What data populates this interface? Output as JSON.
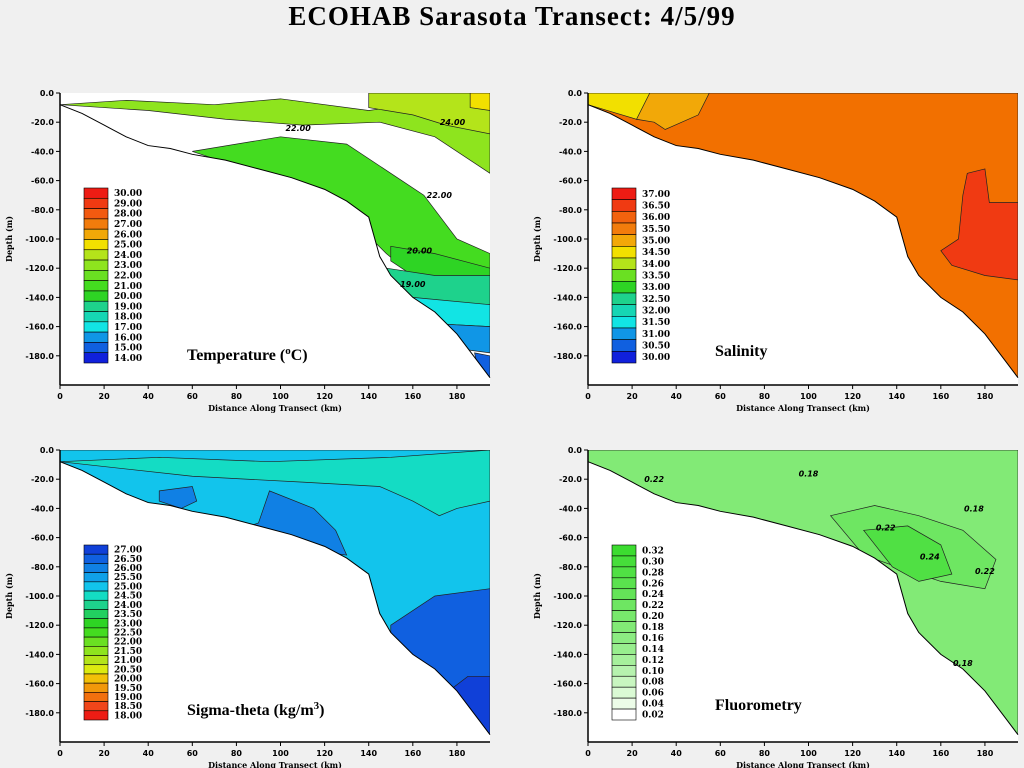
{
  "title": "ECOHAB Sarasota Transect: 4/5/99",
  "chart_data": [
    {
      "type": "contour",
      "title": "Temperature (oC)",
      "title_main": "Temperature (",
      "title_sup": "o",
      "title_tail": "C)",
      "xlabel": "Distance Along Transect (km)",
      "ylabel": "Depth (m)",
      "xlim": [
        0,
        195
      ],
      "ylim": [
        -200,
        0
      ],
      "xticks": [
        0,
        20,
        40,
        60,
        80,
        100,
        120,
        140,
        160,
        180
      ],
      "yticks": [
        "0.0",
        "-20.0",
        "-40.0",
        "-60.0",
        "-80.0",
        "-100.0",
        "-120.0",
        "-140.0",
        "-160.0",
        "-180.0"
      ],
      "legend": [
        "30.00",
        "29.00",
        "28.00",
        "27.00",
        "26.00",
        "25.00",
        "24.00",
        "23.00",
        "22.00",
        "21.00",
        "20.00",
        "19.00",
        "18.00",
        "17.00",
        "16.00",
        "15.00",
        "14.00"
      ],
      "legend_colors": [
        "#ee1c14",
        "#f03a12",
        "#f25a10",
        "#f27c0c",
        "#f2a808",
        "#f2e000",
        "#b4e41a",
        "#8ee41e",
        "#6ae022",
        "#44dc20",
        "#2ed424",
        "#1ed28c",
        "#16d6b4",
        "#12e4e4",
        "#1096e6",
        "#1060e0",
        "#1020dc"
      ],
      "regions": [
        {
          "color": "#8ee41e",
          "level": 23,
          "poly": [
            [
              0,
              -8
            ],
            [
              30,
              -5
            ],
            [
              70,
              -8
            ],
            [
              100,
              -4
            ],
            [
              140,
              -12
            ],
            [
              195,
              0
            ],
            [
              195,
              -55
            ],
            [
              170,
              -30
            ],
            [
              145,
              -20
            ],
            [
              110,
              -22
            ],
            [
              75,
              -18
            ],
            [
              40,
              -12
            ],
            [
              0,
              -8
            ]
          ]
        },
        {
          "color": "#b4e41a",
          "level": 24,
          "poly": [
            [
              140,
              0
            ],
            [
              195,
              0
            ],
            [
              195,
              -28
            ],
            [
              175,
              -22
            ],
            [
              160,
              -15
            ],
            [
              140,
              -10
            ]
          ]
        },
        {
          "color": "#f2e000",
          "level": 25,
          "poly": [
            [
              186,
              0
            ],
            [
              195,
              0
            ],
            [
              195,
              -12
            ],
            [
              186,
              -10
            ]
          ]
        },
        {
          "color": "#44dc20",
          "level": 21,
          "poly": [
            [
              60,
              -40
            ],
            [
              100,
              -30
            ],
            [
              130,
              -35
            ],
            [
              150,
              -55
            ],
            [
              165,
              -70
            ],
            [
              180,
              -100
            ],
            [
              195,
              -110
            ],
            [
              195,
              -140
            ],
            [
              160,
              -125
            ],
            [
              148,
              -110
            ],
            [
              138,
              -95
            ],
            [
              120,
              -70
            ],
            [
              90,
              -55
            ],
            [
              60,
              -40
            ]
          ]
        },
        {
          "color": "#2ed424",
          "level": 20,
          "poly": [
            [
              150,
              -105
            ],
            [
              170,
              -110
            ],
            [
              195,
              -120
            ],
            [
              195,
              -140
            ],
            [
              165,
              -130
            ],
            [
              150,
              -115
            ]
          ]
        },
        {
          "color": "#1ed28c",
          "level": 19,
          "poly": [
            [
              148,
              -120
            ],
            [
              170,
              -125
            ],
            [
              195,
              -125
            ],
            [
              195,
              -145
            ],
            [
              160,
              -145
            ],
            [
              150,
              -135
            ]
          ]
        },
        {
          "color": "#12e4e4",
          "level": 17,
          "poly": [
            [
              160,
              -140
            ],
            [
              195,
              -145
            ],
            [
              195,
              -160
            ],
            [
              170,
              -158
            ],
            [
              160,
              -148
            ]
          ]
        },
        {
          "color": "#1096e6",
          "level": 16,
          "poly": [
            [
              170,
              -158
            ],
            [
              195,
              -160
            ],
            [
              195,
              -178
            ],
            [
              180,
              -175
            ]
          ]
        },
        {
          "color": "#1060e0",
          "level": 15,
          "poly": [
            [
              188,
              -178
            ],
            [
              195,
              -180
            ],
            [
              195,
              -195
            ],
            [
              190,
              -192
            ]
          ]
        }
      ],
      "contour_labels": [
        {
          "x": 178,
          "y": -22,
          "text": "24.00"
        },
        {
          "x": 108,
          "y": -26,
          "text": "22.00"
        },
        {
          "x": 172,
          "y": -72,
          "text": "22.00"
        },
        {
          "x": 163,
          "y": -110,
          "text": "20.00"
        },
        {
          "x": 160,
          "y": -133,
          "text": "19.00"
        }
      ]
    },
    {
      "type": "contour",
      "title": "Salinity",
      "title_main": "Salinity",
      "title_sup": "",
      "title_tail": "",
      "xlabel": "Distance Along Transect (km)",
      "ylabel": "Depth (m)",
      "xlim": [
        0,
        195
      ],
      "ylim": [
        -200,
        0
      ],
      "xticks": [
        0,
        20,
        40,
        60,
        80,
        100,
        120,
        140,
        160,
        180
      ],
      "yticks": [
        "0.0",
        "-20.0",
        "-40.0",
        "-60.0",
        "-80.0",
        "-100.0",
        "-120.0",
        "-140.0",
        "-160.0",
        "-180.0"
      ],
      "legend": [
        "37.00",
        "36.50",
        "36.00",
        "35.50",
        "35.00",
        "34.50",
        "34.00",
        "33.50",
        "33.00",
        "32.50",
        "32.00",
        "31.50",
        "31.00",
        "30.50",
        "30.00"
      ],
      "legend_colors": [
        "#ee1c14",
        "#f03a12",
        "#f2620e",
        "#f27c0c",
        "#f2a808",
        "#f2e000",
        "#b4e41a",
        "#6ae022",
        "#2ed424",
        "#1ed28c",
        "#16d6b4",
        "#12e4e4",
        "#1096e6",
        "#1060e0",
        "#1020dc"
      ],
      "regions": [
        {
          "color": "#f27000",
          "level": 36,
          "poly": [
            [
              0,
              0
            ],
            [
              195,
              0
            ],
            [
              195,
              -195
            ],
            [
              0,
              -195
            ]
          ]
        },
        {
          "color": "#f2a808",
          "level": 35.5,
          "poly": [
            [
              22,
              0
            ],
            [
              55,
              0
            ],
            [
              50,
              -15
            ],
            [
              35,
              -25
            ],
            [
              30,
              -20
            ],
            [
              22,
              -18
            ]
          ]
        },
        {
          "color": "#f2e000",
          "level": 35,
          "poly": [
            [
              0,
              0
            ],
            [
              28,
              0
            ],
            [
              22,
              -18
            ],
            [
              0,
              -8
            ]
          ]
        },
        {
          "color": "#f03a12",
          "level": 36.5,
          "poly": [
            [
              172,
              -55
            ],
            [
              180,
              -52
            ],
            [
              182,
              -75
            ],
            [
              195,
              -75
            ],
            [
              195,
              -128
            ],
            [
              180,
              -125
            ],
            [
              165,
              -118
            ],
            [
              160,
              -108
            ],
            [
              168,
              -100
            ],
            [
              170,
              -70
            ]
          ]
        }
      ],
      "contour_labels": []
    },
    {
      "type": "contour",
      "title": "Sigma-theta (kg/m3)",
      "title_main": "Sigma-theta  (kg/m",
      "title_sup": "3",
      "title_tail": ")",
      "xlabel": "Distance Along Transect (km)",
      "ylabel": "Depth (m)",
      "xlim": [
        0,
        195
      ],
      "ylim": [
        -200,
        0
      ],
      "xticks": [
        0,
        20,
        40,
        60,
        80,
        100,
        120,
        140,
        160,
        180
      ],
      "yticks": [
        "0.0",
        "-20.0",
        "-40.0",
        "-60.0",
        "-80.0",
        "-100.0",
        "-120.0",
        "-140.0",
        "-160.0",
        "-180.0"
      ],
      "legend": [
        "27.00",
        "26.50",
        "26.00",
        "25.50",
        "25.00",
        "24.50",
        "24.00",
        "23.50",
        "23.00",
        "22.50",
        "22.00",
        "21.50",
        "21.00",
        "20.50",
        "20.00",
        "19.50",
        "19.00",
        "18.50",
        "18.00"
      ],
      "legend_colors": [
        "#1040d8",
        "#1060e0",
        "#1080e4",
        "#10a0e8",
        "#12c4ec",
        "#14dcc4",
        "#1ed28c",
        "#22d060",
        "#2ed424",
        "#44dc20",
        "#6ae022",
        "#8ee41e",
        "#b4e41a",
        "#dcea10",
        "#f2c008",
        "#f2980a",
        "#f2700e",
        "#f0461a",
        "#ee1c14"
      ],
      "regions": [
        {
          "color": "#12c4ec",
          "level": 25,
          "poly": [
            [
              0,
              0
            ],
            [
              195,
              0
            ],
            [
              195,
              -195
            ],
            [
              0,
              -195
            ]
          ]
        },
        {
          "color": "#14dcc4",
          "level": 24.5,
          "poly": [
            [
              0,
              -8
            ],
            [
              45,
              -5
            ],
            [
              95,
              -8
            ],
            [
              150,
              -5
            ],
            [
              195,
              0
            ],
            [
              195,
              -35
            ],
            [
              180,
              -40
            ],
            [
              172,
              -45
            ],
            [
              160,
              -35
            ],
            [
              145,
              -25
            ],
            [
              110,
              -22
            ],
            [
              60,
              -18
            ],
            [
              0,
              -8
            ]
          ]
        },
        {
          "color": "#1080e4",
          "level": 26,
          "poly": [
            [
              45,
              -28
            ],
            [
              60,
              -25
            ],
            [
              62,
              -35
            ],
            [
              55,
              -40
            ],
            [
              45,
              -35
            ]
          ]
        },
        {
          "color": "#1080e4",
          "level": 26,
          "poly": [
            [
              80,
              -55
            ],
            [
              90,
              -50
            ],
            [
              95,
              -28
            ],
            [
              115,
              -40
            ],
            [
              125,
              -55
            ],
            [
              130,
              -72
            ],
            [
              120,
              -70
            ],
            [
              100,
              -60
            ]
          ]
        },
        {
          "color": "#1060e0",
          "level": 26.5,
          "poly": [
            [
              150,
              -120
            ],
            [
              170,
              -100
            ],
            [
              195,
              -95
            ],
            [
              195,
              -195
            ],
            [
              140,
              -190
            ],
            [
              150,
              -145
            ]
          ]
        },
        {
          "color": "#1040d8",
          "level": 27,
          "poly": [
            [
              172,
              -170
            ],
            [
              185,
              -155
            ],
            [
              195,
              -155
            ],
            [
              195,
              -195
            ],
            [
              178,
              -195
            ]
          ]
        }
      ],
      "contour_labels": []
    },
    {
      "type": "contour",
      "title": "Fluorometry",
      "title_main": "Fluorometry",
      "title_sup": "",
      "title_tail": "",
      "xlabel": "Distance Along Transect (km)",
      "ylabel": "Depth (m)",
      "xlim": [
        0,
        195
      ],
      "ylim": [
        -200,
        0
      ],
      "xticks": [
        0,
        20,
        40,
        60,
        80,
        100,
        120,
        140,
        160,
        180
      ],
      "yticks": [
        "0.0",
        "-20.0",
        "-40.0",
        "-60.0",
        "-80.0",
        "-100.0",
        "-120.0",
        "-140.0",
        "-160.0",
        "-180.0"
      ],
      "legend": [
        "0.32",
        "0.30",
        "0.28",
        "0.26",
        "0.24",
        "0.22",
        "0.20",
        "0.18",
        "0.16",
        "0.14",
        "0.12",
        "0.10",
        "0.08",
        "0.06",
        "0.04",
        "0.02"
      ],
      "legend_colors": [
        "#3cdc30",
        "#46de3a",
        "#50e044",
        "#5ae24e",
        "#64e458",
        "#6ee662",
        "#78e86c",
        "#82ea76",
        "#8cec82",
        "#98ee8e",
        "#a6f09c",
        "#b6f2ae",
        "#c8f6c0",
        "#dafad4",
        "#ecfce8",
        "#ffffff"
      ],
      "regions": [
        {
          "color": "#82ea76",
          "level": 0.18,
          "poly": [
            [
              0,
              0
            ],
            [
              195,
              0
            ],
            [
              195,
              -195
            ],
            [
              0,
              -195
            ]
          ]
        },
        {
          "color": "#6ee662",
          "level": 0.22,
          "poly": [
            [
              110,
              -45
            ],
            [
              130,
              -38
            ],
            [
              150,
              -45
            ],
            [
              170,
              -55
            ],
            [
              185,
              -75
            ],
            [
              180,
              -95
            ],
            [
              160,
              -90
            ],
            [
              140,
              -80
            ],
            [
              125,
              -72
            ]
          ]
        },
        {
          "color": "#50e044",
          "level": 0.28,
          "poly": [
            [
              125,
              -55
            ],
            [
              145,
              -52
            ],
            [
              160,
              -65
            ],
            [
              165,
              -85
            ],
            [
              150,
              -90
            ],
            [
              138,
              -80
            ]
          ]
        }
      ],
      "contour_labels": [
        {
          "x": 30,
          "y": -22,
          "text": "0.22"
        },
        {
          "x": 100,
          "y": -18,
          "text": "0.18"
        },
        {
          "x": 135,
          "y": -55,
          "text": "0.22"
        },
        {
          "x": 155,
          "y": -75,
          "text": "0.24"
        },
        {
          "x": 175,
          "y": -42,
          "text": "0.18"
        },
        {
          "x": 180,
          "y": -85,
          "text": "0.22"
        },
        {
          "x": 170,
          "y": -148,
          "text": "0.18"
        }
      ]
    }
  ],
  "bottom_profile": [
    [
      0,
      -8
    ],
    [
      10,
      -14
    ],
    [
      20,
      -22
    ],
    [
      30,
      -30
    ],
    [
      40,
      -36
    ],
    [
      50,
      -38
    ],
    [
      60,
      -42
    ],
    [
      75,
      -46
    ],
    [
      90,
      -52
    ],
    [
      105,
      -58
    ],
    [
      120,
      -66
    ],
    [
      130,
      -74
    ],
    [
      140,
      -85
    ],
    [
      145,
      -112
    ],
    [
      150,
      -125
    ],
    [
      160,
      -140
    ],
    [
      170,
      -150
    ],
    [
      180,
      -165
    ],
    [
      190,
      -185
    ],
    [
      195,
      -195
    ]
  ]
}
